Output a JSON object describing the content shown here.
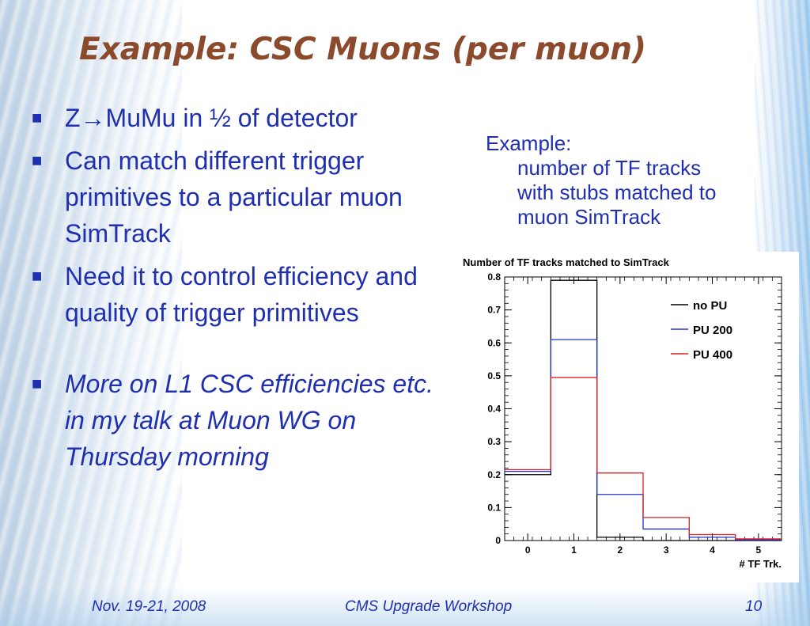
{
  "slide": {
    "title": "Example: CSC Muons (per muon)",
    "bullets": [
      {
        "pre": "Z",
        "arrow": "→",
        "post": "MuMu in ½ of detector",
        "italic": false
      },
      {
        "text": "Can match different trigger primitives to a particular muon SimTrack",
        "italic": false
      },
      {
        "text": "Need it to control efficiency and quality of trigger primitives",
        "italic": false
      },
      {
        "text": "More on L1 CSC efficiencies etc. in my talk at Muon WG on Thursday morning",
        "italic": true
      }
    ],
    "bullet_marker": "■",
    "note": {
      "head": "Example:",
      "lines": [
        "number of TF tracks",
        "with stubs matched to",
        "muon SimTrack"
      ]
    },
    "footer": {
      "left": "Nov. 19-21, 2008",
      "center": "CMS Upgrade Workshop",
      "right": "10"
    }
  },
  "chart_data": {
    "type": "line",
    "title": "Number of TF tracks matched to SimTrack",
    "xlabel": "# TF Trk.",
    "ylabel": "",
    "xlim": [
      -0.5,
      5.5
    ],
    "ylim": [
      0,
      0.8
    ],
    "x_ticks": [
      0,
      1,
      2,
      3,
      4,
      5
    ],
    "y_ticks": [
      0,
      0.1,
      0.2,
      0.3,
      0.4,
      0.5,
      0.6,
      0.7,
      0.8
    ],
    "style": "step-histogram",
    "legend_position": "top-right",
    "categories": [
      0,
      1,
      2,
      3,
      4,
      5
    ],
    "series": [
      {
        "name": "no PU",
        "color": "#000000",
        "values": [
          0.2,
          0.79,
          0.01,
          0.0,
          0.0,
          0.0
        ]
      },
      {
        "name": "PU 200",
        "color": "#2233cc",
        "values": [
          0.21,
          0.61,
          0.14,
          0.035,
          0.01,
          0.002
        ]
      },
      {
        "name": "PU 400",
        "color": "#e02020",
        "values": [
          0.215,
          0.495,
          0.205,
          0.07,
          0.018,
          0.005
        ]
      }
    ]
  }
}
